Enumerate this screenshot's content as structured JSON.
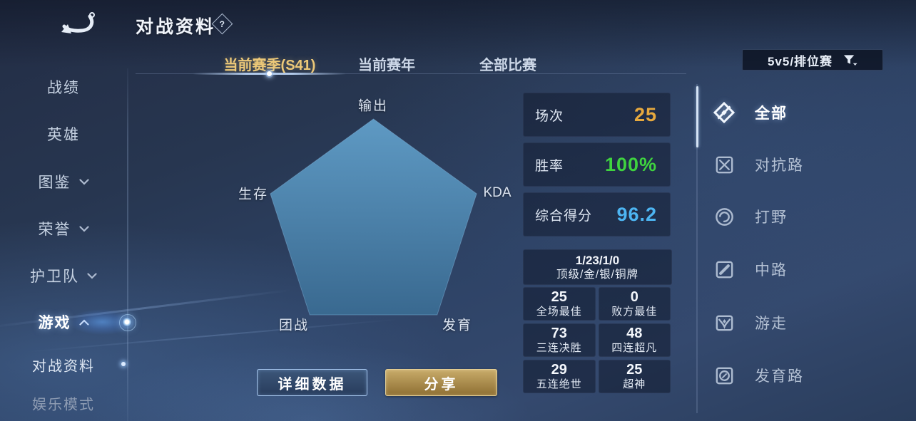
{
  "header": {
    "title": "对战资料",
    "help_glyph": "?"
  },
  "tabs": [
    {
      "label": "当前赛季(S41)",
      "active": true
    },
    {
      "label": "当前赛年",
      "active": false
    },
    {
      "label": "全部比赛",
      "active": false
    }
  ],
  "filter": {
    "label": "5v5/排位赛"
  },
  "sidebar": {
    "items": [
      {
        "label": "战绩"
      },
      {
        "label": "英雄"
      },
      {
        "label": "图鉴"
      },
      {
        "label": "荣誉"
      },
      {
        "label": "护卫队"
      },
      {
        "label": "游戏"
      },
      {
        "label": "对战资料"
      },
      {
        "label": "娱乐模式"
      }
    ]
  },
  "chart_data": {
    "type": "radar",
    "categories": [
      "输出",
      "KDA",
      "发育",
      "团战",
      "生存"
    ],
    "values": [
      100,
      100,
      100,
      100,
      100
    ],
    "max": 100,
    "axis_range": [
      0,
      100
    ],
    "grid": false,
    "legend": "none",
    "fill_top": "#63a2cd",
    "fill_bottom": "#3a6c93"
  },
  "stats": {
    "rows": [
      {
        "label": "场次",
        "value": "25",
        "color": "#e7a93e"
      },
      {
        "label": "胜率",
        "value": "100%",
        "color": "#3fd33f"
      },
      {
        "label": "综合得分",
        "value": "96.2",
        "color": "#4db5f2"
      }
    ]
  },
  "medals": {
    "summary_value": "1/23/1/0",
    "summary_label": "顶级/金/银/铜牌",
    "cells": [
      {
        "value": "25",
        "label": "全场最佳"
      },
      {
        "value": "0",
        "label": "败方最佳"
      },
      {
        "value": "73",
        "label": "三连决胜"
      },
      {
        "value": "48",
        "label": "四连超凡"
      },
      {
        "value": "29",
        "label": "五连绝世"
      },
      {
        "value": "25",
        "label": "超神"
      }
    ]
  },
  "buttons": {
    "detail": "详细数据",
    "share": "分享"
  },
  "lanes": {
    "items": [
      {
        "label": "全部",
        "active": true
      },
      {
        "label": "对抗路",
        "active": false
      },
      {
        "label": "打野",
        "active": false
      },
      {
        "label": "中路",
        "active": false
      },
      {
        "label": "游走",
        "active": false
      },
      {
        "label": "发育路",
        "active": false
      }
    ]
  },
  "colors": {
    "tab_active": "#ecc878",
    "value_gold": "#e7a93e",
    "value_green": "#3fd33f",
    "value_blue": "#4db5f2",
    "share_button_gold": "#c8ab69",
    "detail_button_border": "#a6c6ee"
  }
}
